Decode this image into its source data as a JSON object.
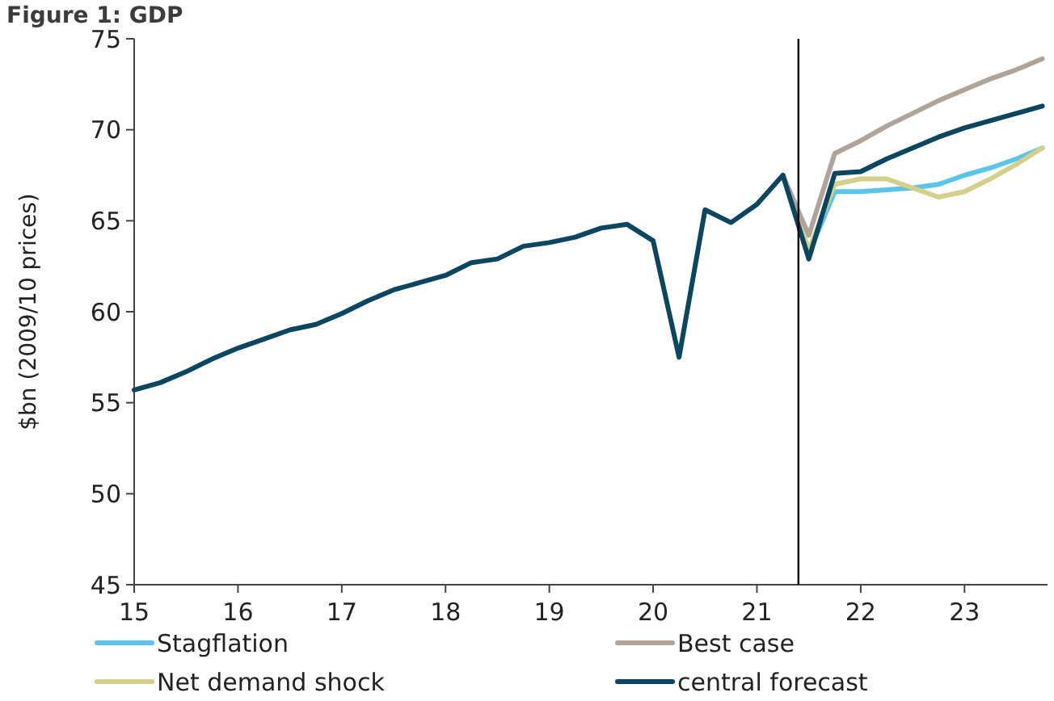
{
  "chart_data": {
    "type": "line",
    "title": "Figure 1: GDP",
    "ylabel": "$bn (2009/10 prices)",
    "xlim": [
      15,
      23.8
    ],
    "xticks": [
      15,
      16,
      17,
      18,
      19,
      20,
      21,
      22,
      23
    ],
    "ylim": [
      45,
      75
    ],
    "yticks": [
      45,
      50,
      55,
      60,
      65,
      70,
      75
    ],
    "grid": false,
    "legend": "bottom",
    "marker": "none",
    "line_style": "solid",
    "ref_lines": [
      {
        "axis": "x",
        "value": 21.4,
        "color": "#000000"
      }
    ],
    "series": [
      {
        "name": "Stagflation",
        "color": "#5bc4ea",
        "x": [
          21.25,
          21.5,
          21.75,
          22,
          22.25,
          22.5,
          22.75,
          23,
          23.25,
          23.5,
          23.75
        ],
        "values": [
          67.5,
          63.2,
          66.6,
          66.6,
          66.7,
          66.8,
          67.0,
          67.5,
          67.9,
          68.4,
          69.0
        ]
      },
      {
        "name": "Net demand shock",
        "color": "#d4cf8b",
        "x": [
          21.25,
          21.5,
          21.75,
          22,
          22.25,
          22.5,
          22.75,
          23,
          23.25,
          23.5,
          23.75
        ],
        "values": [
          67.5,
          63.4,
          67.0,
          67.3,
          67.3,
          66.8,
          66.3,
          66.6,
          67.3,
          68.1,
          69.0
        ]
      },
      {
        "name": "Best case",
        "color": "#b0a49a",
        "x": [
          21.25,
          21.5,
          21.75,
          22,
          22.25,
          22.5,
          22.75,
          23,
          23.25,
          23.5,
          23.75
        ],
        "values": [
          67.5,
          64.2,
          68.7,
          69.4,
          70.2,
          70.9,
          71.6,
          72.2,
          72.8,
          73.3,
          73.9
        ]
      },
      {
        "name": "central forecast",
        "color": "#0b4661",
        "x": [
          15,
          15.25,
          15.5,
          15.75,
          16,
          16.25,
          16.5,
          16.75,
          17,
          17.25,
          17.5,
          17.75,
          18,
          18.25,
          18.5,
          18.75,
          19,
          19.25,
          19.5,
          19.75,
          20,
          20.25,
          20.5,
          20.75,
          21,
          21.25,
          21.5,
          21.75,
          22,
          22.25,
          22.5,
          22.75,
          23,
          23.25,
          23.5,
          23.75
        ],
        "values": [
          55.7,
          56.1,
          56.7,
          57.4,
          58.0,
          58.5,
          59.0,
          59.3,
          59.9,
          60.6,
          61.2,
          61.6,
          62.0,
          62.7,
          62.9,
          63.6,
          63.8,
          64.1,
          64.6,
          64.8,
          63.9,
          57.5,
          65.6,
          64.9,
          65.9,
          67.5,
          62.9,
          67.6,
          67.7,
          68.4,
          69.0,
          69.6,
          70.1,
          70.5,
          70.9,
          71.3
        ]
      }
    ]
  }
}
